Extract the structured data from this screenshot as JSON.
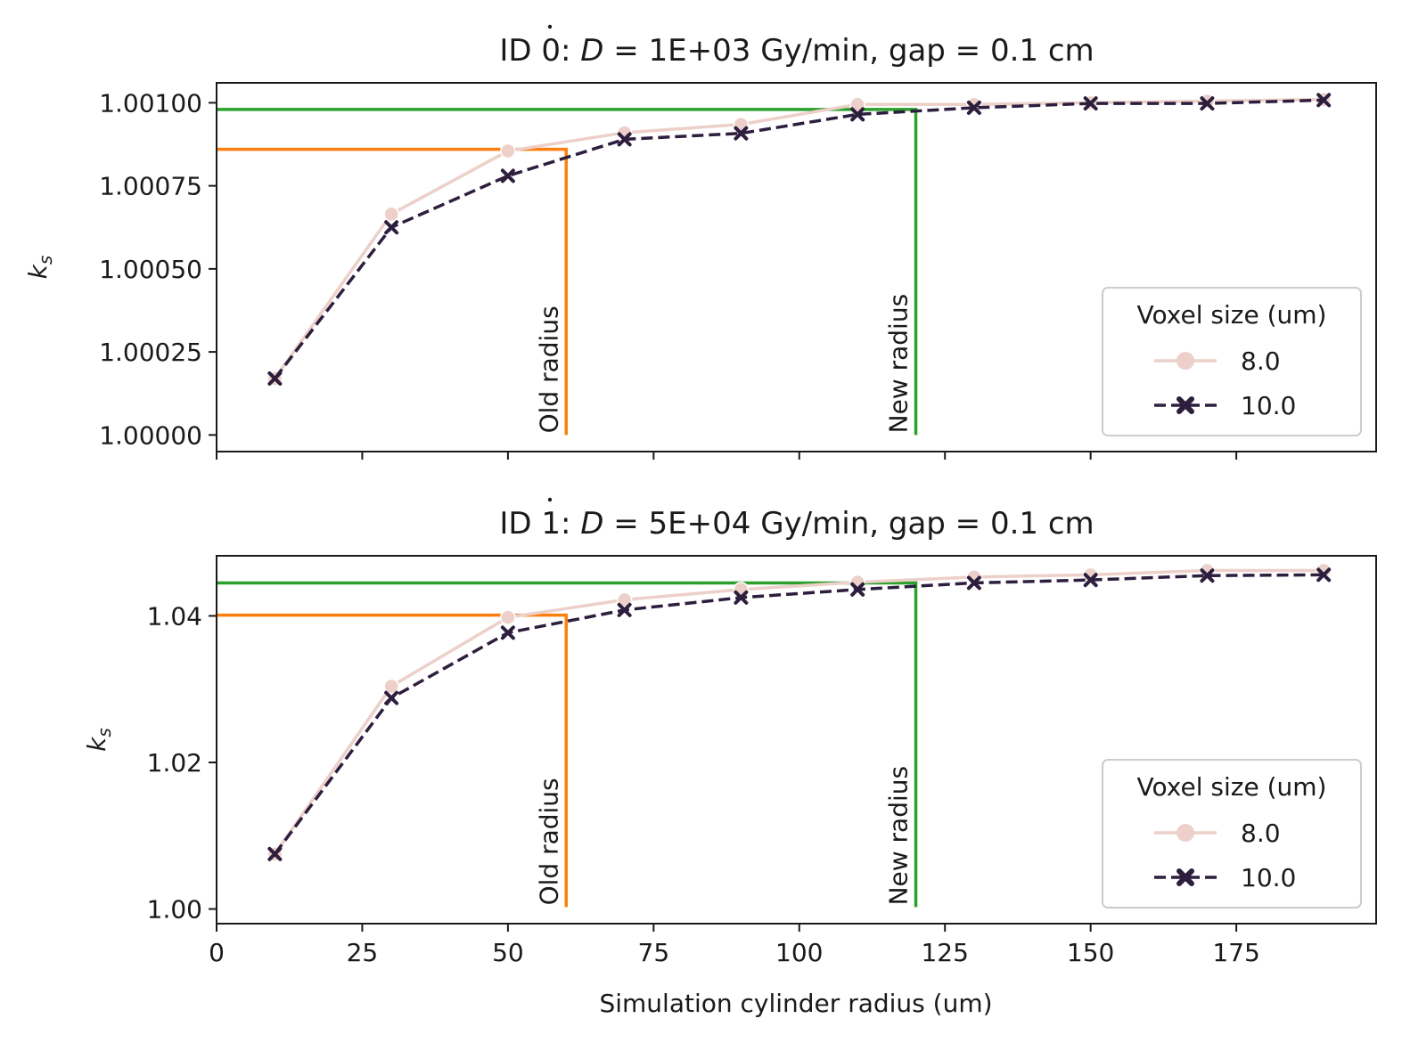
{
  "xlabel": "Simulation cylinder radius (um)",
  "chart_data": [
    {
      "type": "line",
      "title_prefix": "ID 0: ",
      "title_symbol": "D",
      "title_suffix": " = 1E+03 Gy/min, gap = 0.1 cm",
      "ylabel": "k",
      "ylabel_sub": "s",
      "xlim": [
        0,
        199
      ],
      "ylim": [
        0.99995,
        1.00106
      ],
      "xticks": [
        0,
        25,
        50,
        75,
        100,
        125,
        150,
        175
      ],
      "xtick_labels": [
        "",
        "",
        "",
        "",
        "",
        "",
        "",
        ""
      ],
      "yticks": [
        1.0,
        1.00025,
        1.0005,
        1.00075,
        1.001
      ],
      "ytick_labels": [
        "1.00000",
        "1.00025",
        "1.00050",
        "1.00075",
        "1.00100"
      ],
      "x": [
        10,
        30,
        50,
        70,
        90,
        110,
        130,
        150,
        170,
        190
      ],
      "series": [
        {
          "name": "8.0",
          "color": "#ecd0c9",
          "dash": "solid",
          "marker": "circle",
          "values": [
            1.00017,
            1.000665,
            1.000855,
            1.00091,
            1.000935,
            1.000995,
            1.000995,
            1.001,
            1.001005,
            1.00101
          ]
        },
        {
          "name": "10.0",
          "color": "#2d1e3e",
          "dash": "dashed",
          "marker": "x",
          "values": [
            1.00017,
            1.000625,
            1.00078,
            1.00089,
            1.000908,
            1.000965,
            1.000985,
            1.000998,
            1.000998,
            1.001008
          ]
        }
      ],
      "annotations": [
        {
          "label": "Old radius",
          "x": 60,
          "y": 1.00086,
          "color": "#ff7f0e"
        },
        {
          "label": "New radius",
          "x": 120,
          "y": 1.00098,
          "color": "#2ca02c"
        }
      ],
      "legend": {
        "title": "Voxel size (um)",
        "placement": "lower-right"
      }
    },
    {
      "type": "line",
      "title_prefix": "ID 1: ",
      "title_symbol": "D",
      "title_suffix": " = 5E+04 Gy/min, gap = 0.1 cm",
      "ylabel": "k",
      "ylabel_sub": "s",
      "xlim": [
        0,
        199
      ],
      "ylim": [
        0.998,
        1.0482
      ],
      "xticks": [
        0,
        25,
        50,
        75,
        100,
        125,
        150,
        175
      ],
      "xtick_labels": [
        "0",
        "25",
        "50",
        "75",
        "100",
        "125",
        "150",
        "175"
      ],
      "yticks": [
        1.0,
        1.02,
        1.04
      ],
      "ytick_labels": [
        "1.00",
        "1.02",
        "1.04"
      ],
      "x": [
        10,
        30,
        50,
        70,
        90,
        110,
        130,
        150,
        170,
        190
      ],
      "series": [
        {
          "name": "8.0",
          "color": "#ecd0c9",
          "dash": "solid",
          "marker": "circle",
          "values": [
            1.0075,
            1.0304,
            1.0398,
            1.0422,
            1.0436,
            1.0446,
            1.0453,
            1.0456,
            1.0462,
            1.0462
          ]
        },
        {
          "name": "10.0",
          "color": "#2d1e3e",
          "dash": "dashed",
          "marker": "x",
          "values": [
            1.0075,
            1.0288,
            1.0377,
            1.0408,
            1.0425,
            1.0436,
            1.0445,
            1.0449,
            1.0455,
            1.0456
          ]
        }
      ],
      "annotations": [
        {
          "label": "Old radius",
          "x": 60,
          "y": 1.0401,
          "color": "#ff7f0e"
        },
        {
          "label": "New radius",
          "x": 120,
          "y": 1.0445,
          "color": "#2ca02c"
        }
      ],
      "legend": {
        "title": "Voxel size (um)",
        "placement": "lower-right"
      }
    }
  ]
}
